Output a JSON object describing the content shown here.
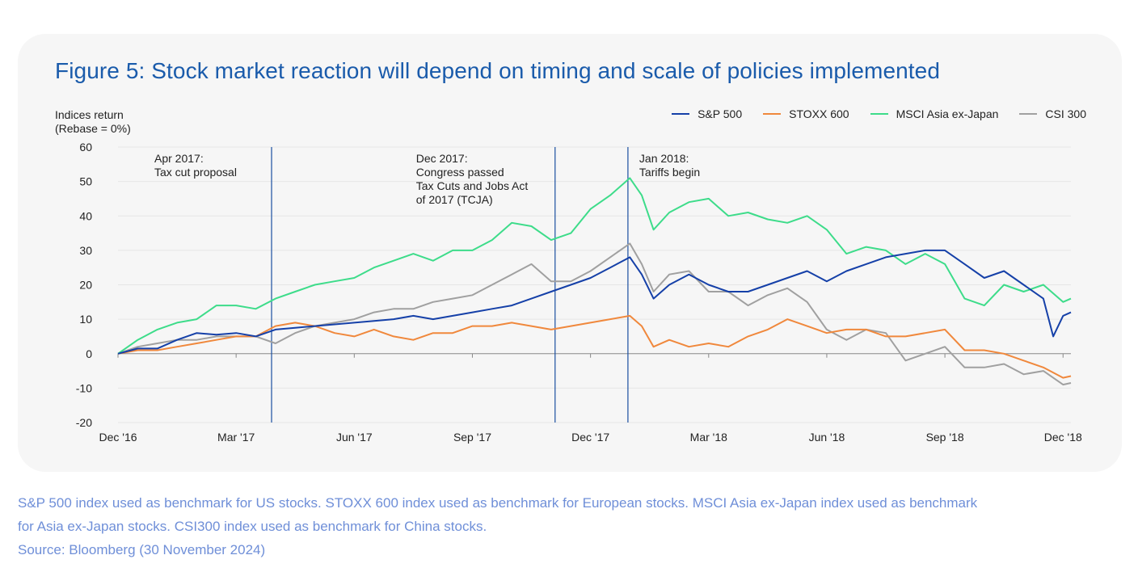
{
  "title": "Figure 5: Stock market reaction will depend on timing and scale of policies implemented",
  "ylabel_line1": "Indices return",
  "ylabel_line2": "(Rebase = 0%)",
  "legend": [
    {
      "name": "S&P 500",
      "color": "#1540a8"
    },
    {
      "name": "STOXX 600",
      "color": "#f0883c"
    },
    {
      "name": "MSCI Asia ex-Japan",
      "color": "#3ddc8a"
    },
    {
      "name": "CSI 300",
      "color": "#a0a0a0"
    }
  ],
  "footnote": {
    "line1": "S&P 500 index used as benchmark for US stocks. STOXX 600 index used as benchmark for European stocks. MSCI Asia ex-Japan index used as benchmark",
    "line2": "for Asia ex-Japan stocks. CSI300 index used as benchmark for China stocks.",
    "line3": "Source: Bloomberg (30 November 2024)"
  },
  "chart_data": {
    "type": "line",
    "ylim": [
      -20,
      60
    ],
    "yticks": [
      60,
      50,
      40,
      30,
      20,
      10,
      0,
      -10,
      -20
    ],
    "x_ticks": [
      {
        "label": "Dec '16",
        "month": 0
      },
      {
        "label": "Mar '17",
        "month": 3
      },
      {
        "label": "Jun '17",
        "month": 6
      },
      {
        "label": "Sep '17",
        "month": 9
      },
      {
        "label": "Dec '17",
        "month": 12
      },
      {
        "label": "Mar '18",
        "month": 15
      },
      {
        "label": "Jun '18",
        "month": 18
      },
      {
        "label": "Sep '18",
        "month": 21
      },
      {
        "label": "Dec '18",
        "month": 24
      }
    ],
    "x_unit": "months from Dec '16",
    "annotations": [
      {
        "month": 3.9,
        "lines": [
          "Apr 2017:",
          "Tax cut proposal"
        ]
      },
      {
        "month": 11.1,
        "lines": [
          "Dec 2017:",
          "Congress passed",
          "Tax Cuts and Jobs Act",
          "of 2017 (TCJA)"
        ]
      },
      {
        "month": 12.95,
        "lines": [
          "Jan 2018:",
          "Tariffs begin"
        ]
      }
    ],
    "series": [
      {
        "name": "S&P 500",
        "color": "#1540a8",
        "points": [
          [
            0,
            0
          ],
          [
            0.5,
            1.5
          ],
          [
            1,
            1.5
          ],
          [
            1.5,
            4
          ],
          [
            2,
            6
          ],
          [
            2.5,
            5.5
          ],
          [
            3,
            6
          ],
          [
            3.5,
            5
          ],
          [
            4,
            7
          ],
          [
            4.5,
            7.5
          ],
          [
            5,
            8
          ],
          [
            5.5,
            8.5
          ],
          [
            6,
            9
          ],
          [
            6.5,
            9.5
          ],
          [
            7,
            10
          ],
          [
            7.5,
            11
          ],
          [
            8,
            10
          ],
          [
            8.5,
            11
          ],
          [
            9,
            12
          ],
          [
            9.5,
            13
          ],
          [
            10,
            14
          ],
          [
            10.5,
            16
          ],
          [
            11,
            18
          ],
          [
            11.5,
            20
          ],
          [
            12,
            22
          ],
          [
            12.5,
            25
          ],
          [
            13,
            28
          ],
          [
            13.3,
            23
          ],
          [
            13.6,
            16
          ],
          [
            14,
            20
          ],
          [
            14.5,
            23
          ],
          [
            15,
            20
          ],
          [
            15.5,
            18
          ],
          [
            16,
            18
          ],
          [
            16.5,
            20
          ],
          [
            17,
            22
          ],
          [
            17.5,
            24
          ],
          [
            18,
            21
          ],
          [
            18.5,
            24
          ],
          [
            19,
            26
          ],
          [
            19.5,
            28
          ],
          [
            20,
            29
          ],
          [
            20.5,
            30
          ],
          [
            21,
            30
          ],
          [
            21.5,
            26
          ],
          [
            22,
            22
          ],
          [
            22.5,
            24
          ],
          [
            23,
            20
          ],
          [
            23.5,
            16
          ],
          [
            23.75,
            5
          ],
          [
            24,
            11
          ],
          [
            24.2,
            12
          ]
        ]
      },
      {
        "name": "STOXX 600",
        "color": "#f0883c",
        "points": [
          [
            0,
            0
          ],
          [
            0.5,
            1
          ],
          [
            1,
            1
          ],
          [
            1.5,
            2
          ],
          [
            2,
            3
          ],
          [
            2.5,
            4
          ],
          [
            3,
            5
          ],
          [
            3.5,
            5
          ],
          [
            4,
            8
          ],
          [
            4.5,
            9
          ],
          [
            5,
            8
          ],
          [
            5.5,
            6
          ],
          [
            6,
            5
          ],
          [
            6.5,
            7
          ],
          [
            7,
            5
          ],
          [
            7.5,
            4
          ],
          [
            8,
            6
          ],
          [
            8.5,
            6
          ],
          [
            9,
            8
          ],
          [
            9.5,
            8
          ],
          [
            10,
            9
          ],
          [
            10.5,
            8
          ],
          [
            11,
            7
          ],
          [
            11.5,
            8
          ],
          [
            12,
            9
          ],
          [
            12.5,
            10
          ],
          [
            13,
            11
          ],
          [
            13.3,
            8
          ],
          [
            13.6,
            2
          ],
          [
            14,
            4
          ],
          [
            14.5,
            2
          ],
          [
            15,
            3
          ],
          [
            15.5,
            2
          ],
          [
            16,
            5
          ],
          [
            16.5,
            7
          ],
          [
            17,
            10
          ],
          [
            17.5,
            8
          ],
          [
            18,
            6
          ],
          [
            18.5,
            7
          ],
          [
            19,
            7
          ],
          [
            19.5,
            5
          ],
          [
            20,
            5
          ],
          [
            20.5,
            6
          ],
          [
            21,
            7
          ],
          [
            21.5,
            1
          ],
          [
            22,
            1
          ],
          [
            22.5,
            0
          ],
          [
            23,
            -2
          ],
          [
            23.5,
            -4
          ],
          [
            24,
            -7
          ],
          [
            24.2,
            -6.5
          ]
        ]
      },
      {
        "name": "MSCI Asia ex-Japan",
        "color": "#3ddc8a",
        "points": [
          [
            0,
            0
          ],
          [
            0.5,
            4
          ],
          [
            1,
            7
          ],
          [
            1.5,
            9
          ],
          [
            2,
            10
          ],
          [
            2.5,
            14
          ],
          [
            3,
            14
          ],
          [
            3.5,
            13
          ],
          [
            4,
            16
          ],
          [
            4.5,
            18
          ],
          [
            5,
            20
          ],
          [
            5.5,
            21
          ],
          [
            6,
            22
          ],
          [
            6.5,
            25
          ],
          [
            7,
            27
          ],
          [
            7.5,
            29
          ],
          [
            8,
            27
          ],
          [
            8.5,
            30
          ],
          [
            9,
            30
          ],
          [
            9.5,
            33
          ],
          [
            10,
            38
          ],
          [
            10.5,
            37
          ],
          [
            11,
            33
          ],
          [
            11.5,
            35
          ],
          [
            12,
            42
          ],
          [
            12.5,
            46
          ],
          [
            13,
            51
          ],
          [
            13.3,
            46
          ],
          [
            13.6,
            36
          ],
          [
            14,
            41
          ],
          [
            14.5,
            44
          ],
          [
            15,
            45
          ],
          [
            15.5,
            40
          ],
          [
            16,
            41
          ],
          [
            16.5,
            39
          ],
          [
            17,
            38
          ],
          [
            17.5,
            40
          ],
          [
            18,
            36
          ],
          [
            18.5,
            29
          ],
          [
            19,
            31
          ],
          [
            19.5,
            30
          ],
          [
            20,
            26
          ],
          [
            20.5,
            29
          ],
          [
            21,
            26
          ],
          [
            21.5,
            16
          ],
          [
            22,
            14
          ],
          [
            22.5,
            20
          ],
          [
            23,
            18
          ],
          [
            23.5,
            20
          ],
          [
            24,
            15
          ],
          [
            24.2,
            16
          ]
        ]
      },
      {
        "name": "CSI 300",
        "color": "#a0a0a0",
        "points": [
          [
            0,
            0
          ],
          [
            0.5,
            2
          ],
          [
            1,
            3
          ],
          [
            1.5,
            4
          ],
          [
            2,
            4
          ],
          [
            2.5,
            5
          ],
          [
            3,
            5
          ],
          [
            3.5,
            5
          ],
          [
            4,
            3
          ],
          [
            4.5,
            6
          ],
          [
            5,
            8
          ],
          [
            5.5,
            9
          ],
          [
            6,
            10
          ],
          [
            6.5,
            12
          ],
          [
            7,
            13
          ],
          [
            7.5,
            13
          ],
          [
            8,
            15
          ],
          [
            8.5,
            16
          ],
          [
            9,
            17
          ],
          [
            9.5,
            20
          ],
          [
            10,
            23
          ],
          [
            10.5,
            26
          ],
          [
            11,
            21
          ],
          [
            11.5,
            21
          ],
          [
            12,
            24
          ],
          [
            12.5,
            28
          ],
          [
            13,
            32
          ],
          [
            13.3,
            26
          ],
          [
            13.6,
            18
          ],
          [
            14,
            23
          ],
          [
            14.5,
            24
          ],
          [
            15,
            18
          ],
          [
            15.5,
            18
          ],
          [
            16,
            14
          ],
          [
            16.5,
            17
          ],
          [
            17,
            19
          ],
          [
            17.5,
            15
          ],
          [
            18,
            7
          ],
          [
            18.5,
            4
          ],
          [
            19,
            7
          ],
          [
            19.5,
            6
          ],
          [
            20,
            -2
          ],
          [
            20.5,
            0
          ],
          [
            21,
            2
          ],
          [
            21.5,
            -4
          ],
          [
            22,
            -4
          ],
          [
            22.5,
            -3
          ],
          [
            23,
            -6
          ],
          [
            23.5,
            -5
          ],
          [
            24,
            -9
          ],
          [
            24.2,
            -8.5
          ]
        ]
      }
    ]
  }
}
